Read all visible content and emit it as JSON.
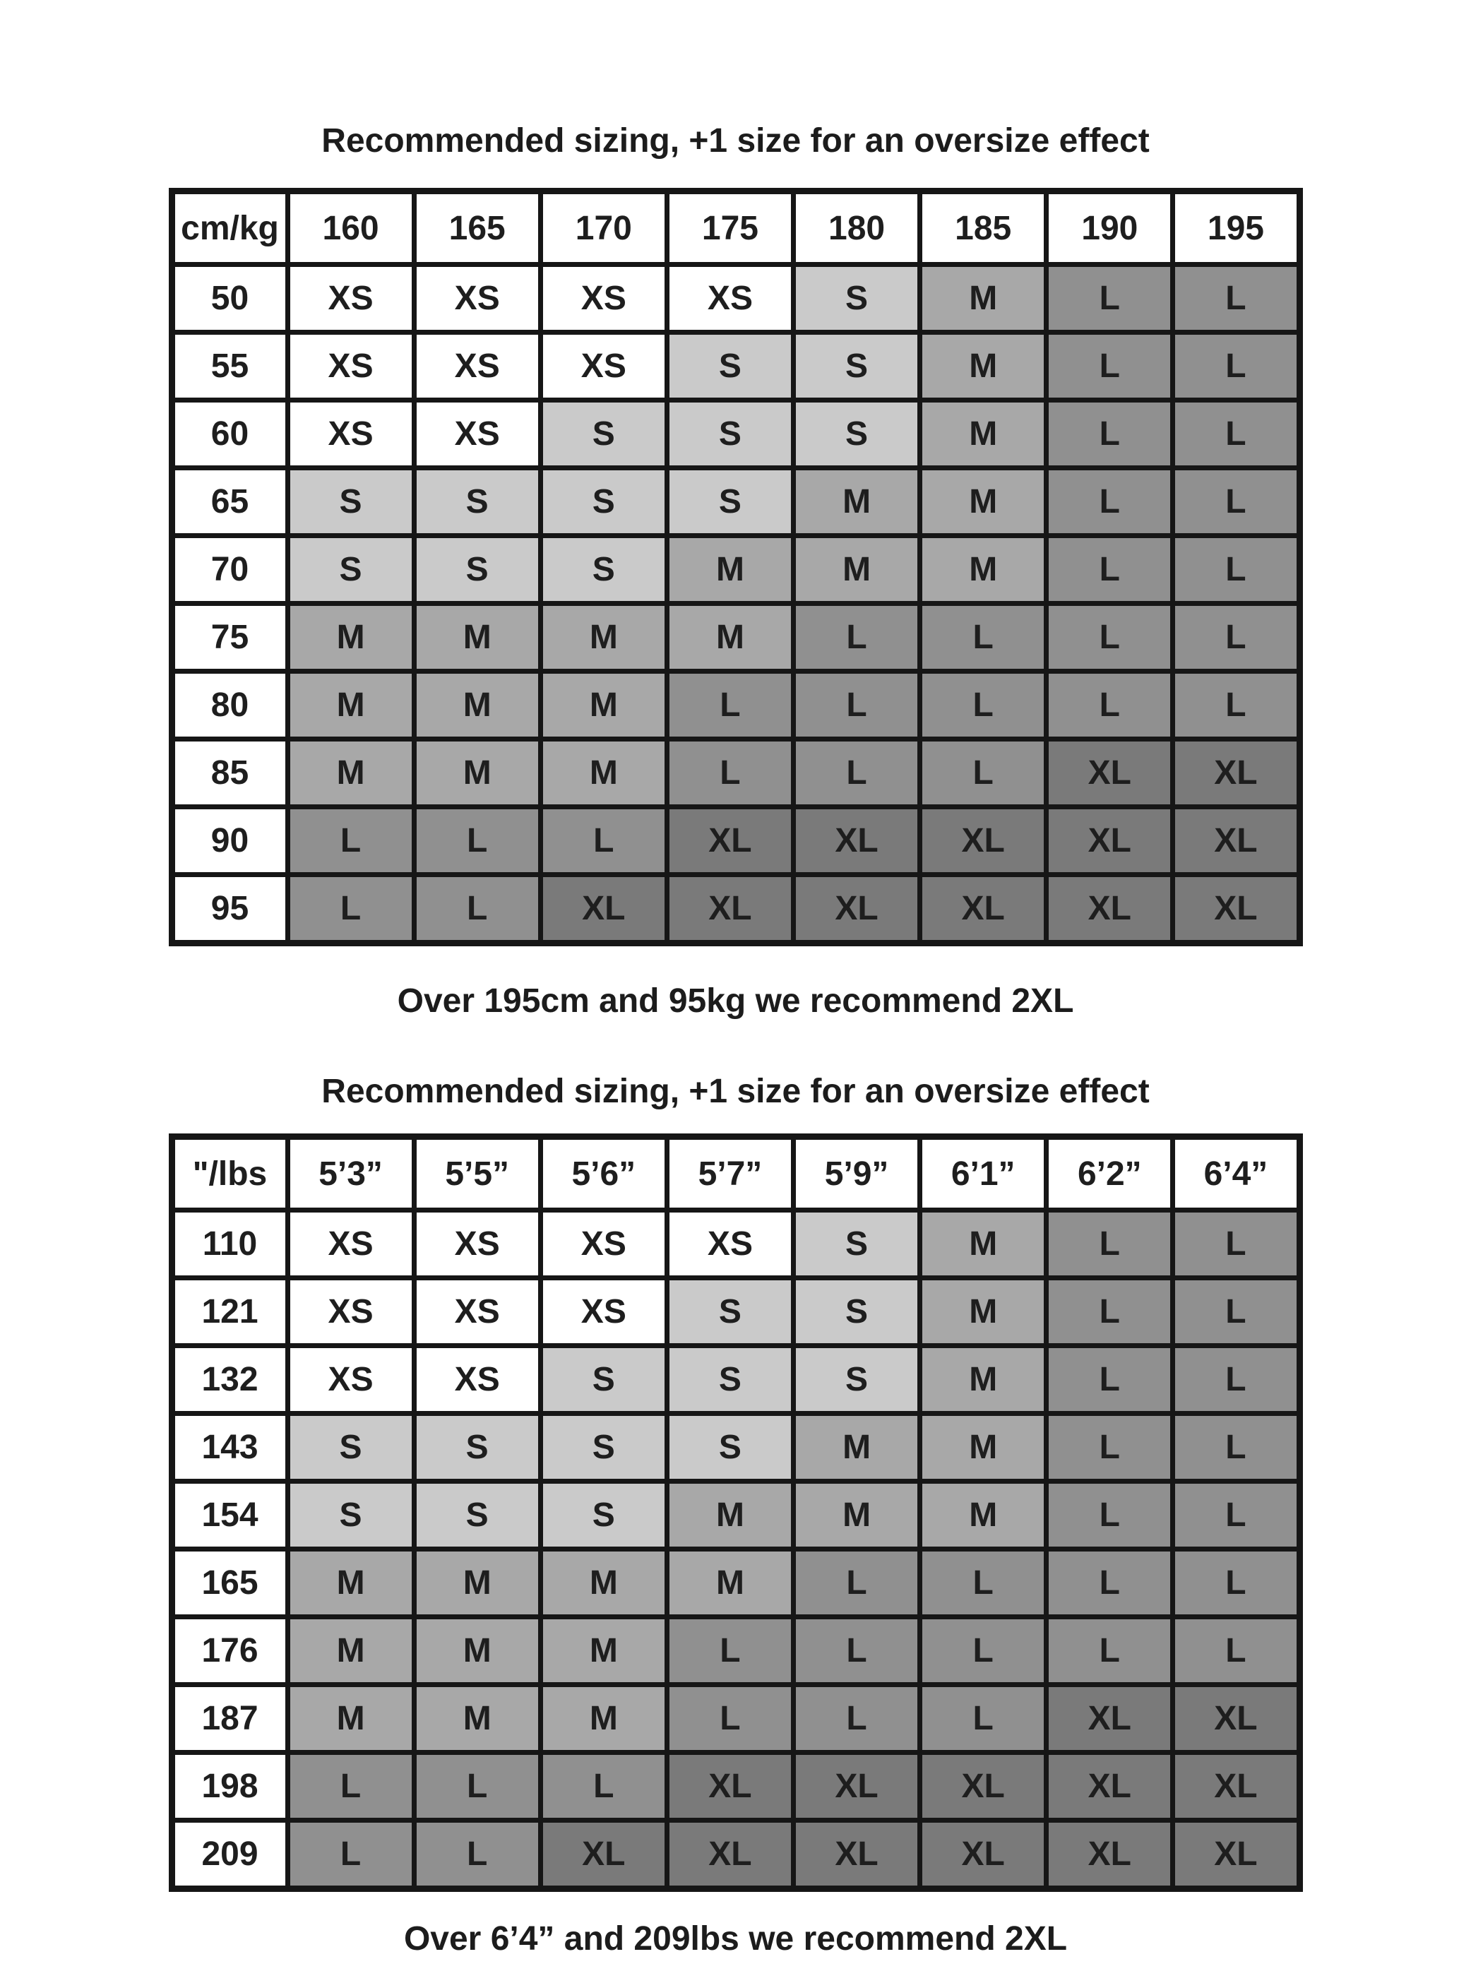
{
  "palette": {
    "XS": "#ffffff",
    "S": "#cacaca",
    "M": "#a8a8a8",
    "L": "#909090",
    "XL": "#7a7a7a",
    "border": "#161616",
    "text": "#1e1e1e"
  },
  "chart_data": [
    {
      "type": "table",
      "title": "Recommended sizing, +1 size for an oversize effect",
      "corner_label": "cm/kg",
      "columns": [
        "160",
        "165",
        "170",
        "175",
        "180",
        "185",
        "190",
        "195"
      ],
      "row_labels": [
        "50",
        "55",
        "60",
        "65",
        "70",
        "75",
        "80",
        "85",
        "90",
        "95"
      ],
      "rows": [
        [
          "XS",
          "XS",
          "XS",
          "XS",
          "S",
          "M",
          "L",
          "L"
        ],
        [
          "XS",
          "XS",
          "XS",
          "S",
          "S",
          "M",
          "L",
          "L"
        ],
        [
          "XS",
          "XS",
          "S",
          "S",
          "S",
          "M",
          "L",
          "L"
        ],
        [
          "S",
          "S",
          "S",
          "S",
          "M",
          "M",
          "L",
          "L"
        ],
        [
          "S",
          "S",
          "S",
          "M",
          "M",
          "M",
          "L",
          "L"
        ],
        [
          "M",
          "M",
          "M",
          "M",
          "L",
          "L",
          "L",
          "L"
        ],
        [
          "M",
          "M",
          "M",
          "L",
          "L",
          "L",
          "L",
          "L"
        ],
        [
          "M",
          "M",
          "M",
          "L",
          "L",
          "L",
          "XL",
          "XL"
        ],
        [
          "L",
          "L",
          "L",
          "XL",
          "XL",
          "XL",
          "XL",
          "XL"
        ],
        [
          "L",
          "L",
          "XL",
          "XL",
          "XL",
          "XL",
          "XL",
          "XL"
        ]
      ],
      "footer": "Over 195cm and 95kg we recommend 2XL"
    },
    {
      "type": "table",
      "title": "Recommended sizing, +1 size for an oversize effect",
      "corner_label": "\"/lbs",
      "columns": [
        "5’3”",
        "5’5”",
        "5’6”",
        "5’7”",
        "5’9”",
        "6’1”",
        "6’2”",
        "6’4”"
      ],
      "row_labels": [
        "110",
        "121",
        "132",
        "143",
        "154",
        "165",
        "176",
        "187",
        "198",
        "209"
      ],
      "rows": [
        [
          "XS",
          "XS",
          "XS",
          "XS",
          "S",
          "M",
          "L",
          "L"
        ],
        [
          "XS",
          "XS",
          "XS",
          "S",
          "S",
          "M",
          "L",
          "L"
        ],
        [
          "XS",
          "XS",
          "S",
          "S",
          "S",
          "M",
          "L",
          "L"
        ],
        [
          "S",
          "S",
          "S",
          "S",
          "M",
          "M",
          "L",
          "L"
        ],
        [
          "S",
          "S",
          "S",
          "M",
          "M",
          "M",
          "L",
          "L"
        ],
        [
          "M",
          "M",
          "M",
          "M",
          "L",
          "L",
          "L",
          "L"
        ],
        [
          "M",
          "M",
          "M",
          "L",
          "L",
          "L",
          "L",
          "L"
        ],
        [
          "M",
          "M",
          "M",
          "L",
          "L",
          "L",
          "XL",
          "XL"
        ],
        [
          "L",
          "L",
          "L",
          "XL",
          "XL",
          "XL",
          "XL",
          "XL"
        ],
        [
          "L",
          "L",
          "XL",
          "XL",
          "XL",
          "XL",
          "XL",
          "XL"
        ]
      ],
      "footer": "Over 6’4” and 209lbs we recommend 2XL"
    }
  ]
}
